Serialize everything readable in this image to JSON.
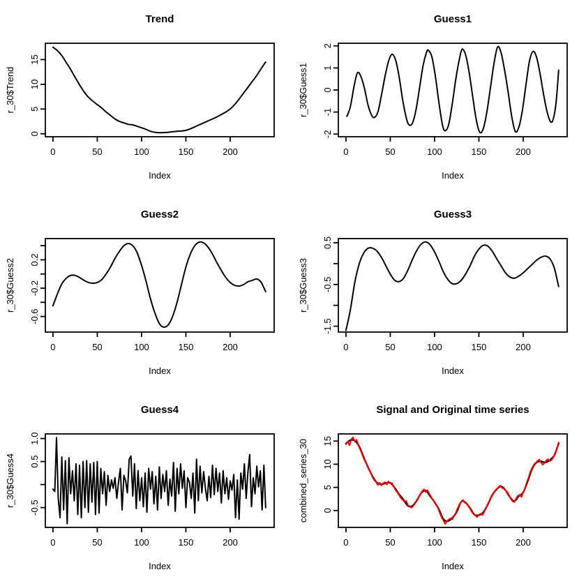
{
  "figure": {
    "background": "#ffffff",
    "line_color": "#000000",
    "highlight_color": "#ff0000"
  },
  "chart_data": [
    {
      "id": "trend",
      "type": "line",
      "title": "Trend",
      "xlabel": "Index",
      "ylabel": "r_30$Trend",
      "xlim": [
        -8.6,
        249.6
      ],
      "ylim": [
        -0.6,
        18.3
      ],
      "grid": false,
      "legend": "none",
      "xticks": [
        {
          "v": 0,
          "l": "0"
        },
        {
          "v": 50,
          "l": "50"
        },
        {
          "v": 100,
          "l": "100"
        },
        {
          "v": 150,
          "l": "150"
        },
        {
          "v": 200,
          "l": "200"
        }
      ],
      "yticks": [
        {
          "v": 0,
          "l": "0"
        },
        {
          "v": 5,
          "l": "5"
        },
        {
          "v": 10,
          "l": "10"
        },
        {
          "v": 15,
          "l": "15"
        }
      ],
      "series": [
        {
          "name": "trend",
          "color": "#000000",
          "width": 2,
          "smooth": true,
          "x0": 0,
          "dx": 5,
          "y": [
            17.5,
            16.8,
            15.8,
            14.4,
            13,
            11.4,
            9.9,
            8.5,
            7.4,
            6.6,
            5.9,
            5.2,
            4.4,
            3.7,
            3,
            2.5,
            2.2,
            1.9,
            1.8,
            1.5,
            1.2,
            0.9,
            0.5,
            0.3,
            0.2,
            0.25,
            0.3,
            0.4,
            0.5,
            0.55,
            0.7,
            1,
            1.4,
            1.8,
            2.2,
            2.6,
            3,
            3.4,
            3.9,
            4.4,
            5,
            5.9,
            7,
            8.2,
            9.4,
            10.6,
            11.8,
            13.2,
            14.5
          ]
        }
      ]
    },
    {
      "id": "guess1",
      "type": "line",
      "title": "Guess1",
      "xlabel": "Index",
      "ylabel": "r_30$Guess1",
      "xlim": [
        -8.6,
        249.6
      ],
      "ylim": [
        -2.12,
        2.12
      ],
      "grid": false,
      "legend": "none",
      "xticks": [
        {
          "v": 0,
          "l": "0"
        },
        {
          "v": 50,
          "l": "50"
        },
        {
          "v": 100,
          "l": "100"
        },
        {
          "v": 150,
          "l": "150"
        },
        {
          "v": 200,
          "l": "200"
        }
      ],
      "yticks": [
        {
          "v": -2,
          "l": "-2"
        },
        {
          "v": -1,
          "l": "-1"
        },
        {
          "v": 0,
          "l": "0"
        },
        {
          "v": 1,
          "l": "1"
        },
        {
          "v": 2,
          "l": "2"
        }
      ],
      "series": [
        {
          "name": "guess1",
          "color": "#000000",
          "width": 2,
          "smooth": true,
          "points": [
            [
              1,
              -1.2
            ],
            [
              5,
              -0.75
            ],
            [
              9,
              0.15
            ],
            [
              13,
              0.78
            ],
            [
              17,
              0.6
            ],
            [
              21,
              0.05
            ],
            [
              25,
              -0.7
            ],
            [
              29,
              -1.15
            ],
            [
              32,
              -1.25
            ],
            [
              36,
              -1.0
            ],
            [
              40,
              -0.25
            ],
            [
              44,
              0.6
            ],
            [
              48,
              1.3
            ],
            [
              52,
              1.62
            ],
            [
              56,
              1.35
            ],
            [
              60,
              0.6
            ],
            [
              64,
              -0.45
            ],
            [
              68,
              -1.25
            ],
            [
              71,
              -1.58
            ],
            [
              75,
              -1.5
            ],
            [
              79,
              -0.9
            ],
            [
              83,
              0.1
            ],
            [
              87,
              1.1
            ],
            [
              91,
              1.72
            ],
            [
              93,
              1.8
            ],
            [
              97,
              1.5
            ],
            [
              101,
              0.6
            ],
            [
              105,
              -0.6
            ],
            [
              109,
              -1.6
            ],
            [
              112,
              -1.85
            ],
            [
              116,
              -1.55
            ],
            [
              120,
              -0.6
            ],
            [
              124,
              0.5
            ],
            [
              128,
              1.4
            ],
            [
              131,
              1.85
            ],
            [
              135,
              1.6
            ],
            [
              139,
              0.8
            ],
            [
              143,
              -0.3
            ],
            [
              147,
              -1.35
            ],
            [
              151,
              -1.92
            ],
            [
              155,
              -1.75
            ],
            [
              159,
              -1.0
            ],
            [
              163,
              0.1
            ],
            [
              167,
              1.2
            ],
            [
              171,
              1.95
            ],
            [
              175,
              1.7
            ],
            [
              179,
              0.9
            ],
            [
              183,
              -0.1
            ],
            [
              187,
              -1.2
            ],
            [
              191,
              -1.88
            ],
            [
              195,
              -1.7
            ],
            [
              199,
              -0.95
            ],
            [
              203,
              0.2
            ],
            [
              207,
              1.3
            ],
            [
              211,
              1.75
            ],
            [
              215,
              1.5
            ],
            [
              219,
              0.75
            ],
            [
              223,
              -0.2
            ],
            [
              227,
              -1.0
            ],
            [
              231,
              -1.45
            ],
            [
              234,
              -1.3
            ],
            [
              237,
              -0.6
            ],
            [
              240,
              0.9
            ]
          ]
        }
      ]
    },
    {
      "id": "guess2",
      "type": "line",
      "title": "Guess2",
      "xlabel": "Index",
      "ylabel": "r_30$Guess2",
      "xlim": [
        -8.6,
        249.6
      ],
      "ylim": [
        -0.82,
        0.5
      ],
      "grid": false,
      "legend": "none",
      "xticks": [
        {
          "v": 0,
          "l": "0"
        },
        {
          "v": 50,
          "l": "50"
        },
        {
          "v": 100,
          "l": "100"
        },
        {
          "v": 150,
          "l": "150"
        },
        {
          "v": 200,
          "l": "200"
        }
      ],
      "yticks": [
        {
          "v": 0.4,
          "l": ""
        },
        {
          "v": 0.2,
          "l": "0.2"
        },
        {
          "v": 0,
          "l": ""
        },
        {
          "v": -0.2,
          "l": "-0.2"
        },
        {
          "v": -0.4,
          "l": ""
        },
        {
          "v": -0.6,
          "l": "-0.6"
        }
      ],
      "series": [
        {
          "name": "guess2",
          "color": "#000000",
          "width": 2,
          "smooth": true,
          "x0": 0,
          "dx": 5,
          "y": [
            -0.45,
            -0.28,
            -0.14,
            -0.06,
            -0.02,
            -0.02,
            -0.05,
            -0.09,
            -0.12,
            -0.13,
            -0.12,
            -0.08,
            0,
            0.1,
            0.22,
            0.32,
            0.4,
            0.43,
            0.4,
            0.3,
            0.12,
            -0.1,
            -0.35,
            -0.55,
            -0.7,
            -0.75,
            -0.72,
            -0.6,
            -0.4,
            -0.15,
            0.1,
            0.28,
            0.4,
            0.45,
            0.44,
            0.38,
            0.28,
            0.16,
            0.05,
            -0.05,
            -0.12,
            -0.16,
            -0.17,
            -0.15,
            -0.11,
            -0.09,
            -0.07,
            -0.12,
            -0.25
          ]
        }
      ]
    },
    {
      "id": "guess3",
      "type": "line",
      "title": "Guess3",
      "xlabel": "Index",
      "ylabel": "r_30$Guess3",
      "xlim": [
        -8.6,
        249.6
      ],
      "ylim": [
        -1.64,
        0.6
      ],
      "grid": false,
      "legend": "none",
      "xticks": [
        {
          "v": 0,
          "l": "0"
        },
        {
          "v": 50,
          "l": "50"
        },
        {
          "v": 100,
          "l": "100"
        },
        {
          "v": 150,
          "l": "150"
        },
        {
          "v": 200,
          "l": "200"
        }
      ],
      "yticks": [
        {
          "v": 0.5,
          "l": "0.5"
        },
        {
          "v": 0,
          "l": ""
        },
        {
          "v": -0.5,
          "l": "-0.5"
        },
        {
          "v": -1,
          "l": ""
        },
        {
          "v": -1.5,
          "l": "-1.5"
        }
      ],
      "series": [
        {
          "name": "guess3",
          "color": "#000000",
          "width": 2,
          "smooth": true,
          "x0": 0,
          "dx": 5,
          "y": [
            -1.6,
            -1.1,
            -0.45,
            0,
            0.25,
            0.37,
            0.37,
            0.3,
            0.15,
            -0.05,
            -0.25,
            -0.4,
            -0.43,
            -0.35,
            -0.15,
            0.1,
            0.32,
            0.47,
            0.52,
            0.45,
            0.28,
            0.05,
            -0.2,
            -0.38,
            -0.48,
            -0.48,
            -0.4,
            -0.25,
            -0.05,
            0.18,
            0.35,
            0.44,
            0.42,
            0.3,
            0.12,
            -0.05,
            -0.22,
            -0.32,
            -0.35,
            -0.3,
            -0.22,
            -0.12,
            -0.02,
            0.08,
            0.15,
            0.18,
            0.12,
            -0.1,
            -0.55
          ]
        }
      ]
    },
    {
      "id": "guess4",
      "type": "line",
      "title": "Guess4",
      "xlabel": "Index",
      "ylabel": "r_30$Guess4",
      "xlim": [
        -8.6,
        249.6
      ],
      "ylim": [
        -0.93,
        1.1
      ],
      "grid": false,
      "legend": "none",
      "xticks": [
        {
          "v": 0,
          "l": "0"
        },
        {
          "v": 50,
          "l": "50"
        },
        {
          "v": 100,
          "l": "100"
        },
        {
          "v": 150,
          "l": "150"
        },
        {
          "v": 200,
          "l": "200"
        }
      ],
      "yticks": [
        {
          "v": 1,
          "l": "1.0"
        },
        {
          "v": 0.5,
          "l": "0.5"
        },
        {
          "v": 0,
          "l": ""
        },
        {
          "v": -0.5,
          "l": "-0.5"
        }
      ],
      "series": [
        {
          "name": "guess4",
          "color": "#000000",
          "width": 2,
          "smooth": false,
          "x0": 0,
          "dx": 2,
          "y": [
            -0.1,
            -0.15,
            1.02,
            -0.3,
            -0.72,
            0.6,
            -0.55,
            0.52,
            -0.85,
            0.58,
            -0.2,
            0.3,
            -0.35,
            0.45,
            -0.65,
            0.42,
            -0.72,
            0.5,
            -0.5,
            0.52,
            -0.6,
            0.45,
            -0.38,
            0.48,
            -0.65,
            0.5,
            -0.62,
            0.35,
            -0.2,
            0.28,
            -0.45,
            0.2,
            -0.15,
            0.1,
            -0.08,
            0.15,
            -0.3,
            0.05,
            0.35,
            -0.55,
            0.2,
            0.08,
            -0.18,
            0.55,
            0.62,
            -0.25,
            0.45,
            -0.52,
            0.3,
            -0.35,
            0.15,
            -0.48,
            0.25,
            -0.6,
            0.35,
            -0.1,
            0.28,
            -0.42,
            0.18,
            -0.55,
            0.38,
            -0.3,
            0.22,
            -0.15,
            0.3,
            -0.45,
            0.12,
            -0.25,
            0.48,
            -0.58,
            0.35,
            -0.2,
            0.45,
            -0.08,
            0.3,
            -0.5,
            0.15,
            0.05,
            -0.3,
            0.25,
            -0.62,
            0.55,
            -0.35,
            0.4,
            -0.18,
            0.28,
            -0.08,
            -0.35,
            0.18,
            -0.28,
            0.42,
            -0.22,
            0.35,
            -0.15,
            0.25,
            -0.4,
            0.3,
            -0.2,
            0.15,
            -0.32,
            0.08,
            -0.12,
            0.22,
            -0.72,
            0.1,
            -0.75,
            0.25,
            -0.1,
            0.45,
            -0.3,
            0.28,
            0.65,
            -0.48,
            0.15,
            -0.2,
            0.4,
            -0.05,
            0.3,
            -0.55,
            0.42,
            -0.5
          ]
        }
      ]
    },
    {
      "id": "combined",
      "type": "line",
      "title": "Signal and Original time series",
      "xlabel": "Index",
      "ylabel": "combined_series_30",
      "xlim": [
        -8.6,
        249.6
      ],
      "ylim": [
        -3.65,
        16.55
      ],
      "grid": false,
      "legend": "none",
      "xticks": [
        {
          "v": 0,
          "l": "0"
        },
        {
          "v": 50,
          "l": "50"
        },
        {
          "v": 100,
          "l": "100"
        },
        {
          "v": 150,
          "l": "150"
        },
        {
          "v": 200,
          "l": "200"
        }
      ],
      "yticks": [
        {
          "v": 0,
          "l": "0"
        },
        {
          "v": 5,
          "l": "5"
        },
        {
          "v": 10,
          "l": "10"
        },
        {
          "v": 15,
          "l": "15"
        }
      ],
      "series": [
        {
          "name": "signal",
          "color": "#000000",
          "width": 2.4,
          "smooth": true,
          "x0": 0,
          "dx": 5,
          "y": [
            14.5,
            15.2,
            15.1,
            13.8,
            11.5,
            9.3,
            7.4,
            6,
            5.7,
            5.9,
            6,
            4.9,
            3.5,
            2.3,
            1,
            1,
            2.2,
            3.8,
            4.3,
            3.1,
            1.8,
            0.2,
            -1.9,
            -2.3,
            -1.6,
            -0.3,
            1.9,
            1.7,
            0.5,
            -0.9,
            -1,
            -0.4,
            1.3,
            3.3,
            4.6,
            5.2,
            4.4,
            2.9,
            2,
            3.1,
            3.9,
            6.3,
            9,
            10.4,
            10.6,
            10.4,
            10.9,
            11.9,
            14.5
          ]
        },
        {
          "name": "original",
          "color": "#ff0000",
          "width": 2,
          "smooth": false,
          "x0": 0,
          "dx": 2,
          "y": [
            14.3,
            14.9,
            14.1,
            15.4,
            15.8,
            14.9,
            15.3,
            14.1,
            13.2,
            12.3,
            11.2,
            10.7,
            9.6,
            8.8,
            8.1,
            7.2,
            6.5,
            6.2,
            5.5,
            6.0,
            5.4,
            5.9,
            6.1,
            5.6,
            6.3,
            5.8,
            5.9,
            5.1,
            4.4,
            3.9,
            3.3,
            2.7,
            2.3,
            1.9,
            2.1,
            1.1,
            0.9,
            0.6,
            1.0,
            1.6,
            2.1,
            2.9,
            3.5,
            4.2,
            4.6,
            4.0,
            4.4,
            3.6,
            3.0,
            2.3,
            1.9,
            1.2,
            0.5,
            -0.6,
            -1.5,
            -2.2,
            -2.9,
            -2.3,
            -1.9,
            -1.7,
            -1.9,
            -1.2,
            -0.5,
            0.5,
            1.3,
            1.9,
            2.3,
            1.7,
            1.5,
            1.0,
            0.4,
            -0.3,
            -0.8,
            -1.1,
            -1.4,
            -0.9,
            -0.7,
            -1.0,
            -0.3,
            0.6,
            1.4,
            2.2,
            2.9,
            3.6,
            4.2,
            4.7,
            5.0,
            5.4,
            4.9,
            4.7,
            4.4,
            4.0,
            3.3,
            2.5,
            2.0,
            1.8,
            2.6,
            3.2,
            3.4,
            2.9,
            3.9,
            4.8,
            6.1,
            7.1,
            8.4,
            9.2,
            9.9,
            10.3,
            10.7,
            11.0,
            10.4,
            9.9,
            10.3,
            10.8,
            11.1,
            10.7,
            10.9,
            11.5,
            12.4,
            13.4,
            14.7
          ]
        }
      ]
    }
  ]
}
